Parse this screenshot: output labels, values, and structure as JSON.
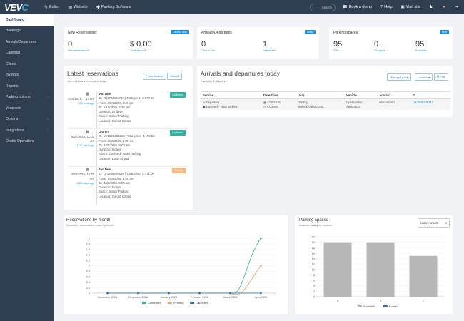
{
  "topbar": {
    "logo_main": "VEV",
    "logo_accent": "C",
    "nav": [
      {
        "icon": "✎",
        "label": "Editor"
      },
      {
        "icon": "▤",
        "label": "Website"
      },
      {
        "icon": "✚",
        "label": "Parking Software"
      }
    ],
    "search": "Search",
    "right": [
      {
        "icon": "☎",
        "label": "Book a demo"
      },
      {
        "icon": "?",
        "label": "Help"
      },
      {
        "icon": "▣",
        "label": "Visit site"
      },
      {
        "icon": "♟",
        "label": ""
      },
      {
        "icon": "●",
        "label": ""
      },
      {
        "icon": "⇥",
        "label": ""
      }
    ]
  },
  "sidebar": [
    {
      "label": "Dashboard",
      "active": true,
      "chev": false
    },
    {
      "label": "Bookings",
      "chev": false
    },
    {
      "label": "Arrivals/Departures",
      "chev": false
    },
    {
      "label": "Calendar",
      "chev": false
    },
    {
      "label": "Clients",
      "chev": false
    },
    {
      "label": "Invoices",
      "chev": false
    },
    {
      "label": "Reports",
      "chev": true
    },
    {
      "label": "Parking options",
      "chev": true
    },
    {
      "label": "Vouchers",
      "chev": false
    },
    {
      "label": "Options",
      "chev": true
    },
    {
      "label": "Integrations",
      "chev": true
    },
    {
      "label": "Onsite Operations",
      "chev": false
    }
  ],
  "cards": {
    "new_res": {
      "title": "New Reservations",
      "badge": "Last 30 days",
      "stats": [
        {
          "value": "0",
          "label": "New reservations"
        },
        {
          "value": "$ 0.00",
          "label": "Total amount"
        }
      ]
    },
    "arr_dep": {
      "title": "Arrivals/Departures",
      "badge": "Today",
      "stats": [
        {
          "value": "0",
          "label": "Cars to live"
        },
        {
          "value": "1",
          "label": "Departures"
        }
      ]
    },
    "parking": {
      "title": "Parking spaces",
      "badge": "Now",
      "stats": [
        {
          "value": "95",
          "label": "Total"
        },
        {
          "value": "0",
          "label": "Occupied"
        },
        {
          "value": "95",
          "label": "Available"
        }
      ]
    }
  },
  "latest": {
    "title": "Latest reservations",
    "subtitle_pre": "You received ",
    "subtitle_count": "1",
    "subtitle_post": " reservation today.",
    "new_btn": "+ New booking",
    "view_btn": "View All",
    "items": [
      {
        "date": "4/25/2026, 7:24 am",
        "ago": "206 mins ago",
        "name": "Jon Doe",
        "status": "Confirmed",
        "status_color": "#2db3a0",
        "id": "ID: JR1734422700 | Total price: $ 977.80",
        "from": "From: 4/28/2026, 3:25 pm",
        "to": "To: 5/10/2026, 3:30 pm",
        "duration": "Duration: 13 days",
        "space": "Space: Indoor Parking",
        "location": "Location: Oxford Circus"
      },
      {
        "date": "5/27/2025, 11:02 am",
        "ago": "1122 days ago",
        "name": "Ora Fry",
        "status": "Confirmed",
        "status_color": "#2db3a0",
        "id": "ID: UY1548306210 | Total price: $ 160.60",
        "from": "From: 4/28/2026, 9:00 am",
        "to": "To: 4/25/2026, 9:00 am",
        "duration": "Duration: 6 days",
        "space": "Space: Covered - Valet parking",
        "location": "Location: Luton Airport"
      },
      {
        "date": "4/30/2026, 10:40 am",
        "ago": "1028 days ago",
        "name": "Jon Doe",
        "status": "Pending",
        "status_color": "#f7b87a",
        "id": "ID: TF1539600539 | Total price: $ 371.00",
        "from": "From: 4/25/2026, 9:00 am",
        "to": "To: 4/30/2026, 9:00 am",
        "duration": "Duration: 5 days",
        "space": "Space: Indoor Parking",
        "location": "Location: Oxford Circus"
      }
    ]
  },
  "arrivals": {
    "title": "Arrivals and departures today",
    "subtitle": "0 arrivals, 1 departure",
    "filter_btn": "Filter by Type ▾",
    "location_btn": "Location ▾",
    "print_btn": "⎙ Print",
    "columns": [
      "Service",
      "Date/Time",
      "User",
      "Vehicle",
      "Location",
      "ID"
    ],
    "rows": [
      {
        "service": "⇲ Departure",
        "service2": "⬢ Covered - Valet parking",
        "date": "▦ 4/25/2026",
        "time": "◷ 9:00 am",
        "user": "Ora Fry",
        "email": "jejykel@yahoo.com",
        "vehicle": "Opel Vectra",
        "plate": "AB543543",
        "location": "Luton Airport",
        "id": "UY1548306210"
      }
    ]
  },
  "res_chart": {
    "title": "Reservations by month",
    "subtitle": "Number of reservations made by month",
    "chart_data": {
      "type": "line",
      "title": "Reservations by month",
      "categories": [
        "November 2028",
        "December 2028",
        "January 2028",
        "February 2028",
        "March 2028",
        "April 2028"
      ],
      "ylim": [
        0,
        2
      ],
      "yticks": [
        "0",
        "0.2",
        "0.4",
        "0.6",
        "0.8",
        "1",
        "1.2",
        "1.4",
        "1.6",
        "1.8",
        "2"
      ],
      "series": [
        {
          "name": "Confirmed",
          "color": "#2db39a",
          "values": [
            0,
            0,
            0,
            0,
            0,
            2
          ]
        },
        {
          "name": "Pending",
          "color": "#f7a35c",
          "values": [
            0,
            0,
            0,
            0,
            0,
            1
          ]
        },
        {
          "name": "Cancelled",
          "color": "#1d6fb8",
          "values": [
            0,
            0,
            0,
            0,
            0,
            0
          ]
        }
      ]
    }
  },
  "space_chart": {
    "title": "Parking spaces",
    "subtitle_pre": "Available ",
    "subtitle_bold": "today",
    "subtitle_post": " by location",
    "select": "Luton Airport",
    "chart_data": {
      "type": "bar",
      "categories": [
        "0",
        "1",
        "2"
      ],
      "ylim": [
        0,
        22
      ],
      "yticks": [
        "0",
        "2",
        "4",
        "6",
        "8",
        "10",
        "12",
        "14",
        "16",
        "18",
        "20",
        "22"
      ],
      "series": [
        {
          "name": "Available",
          "color": "#b7b7b7",
          "values": [
            20,
            20,
            15
          ]
        },
        {
          "name": "Booked",
          "color": "#1d6fb8",
          "values": [
            0,
            0,
            0
          ]
        }
      ]
    }
  }
}
